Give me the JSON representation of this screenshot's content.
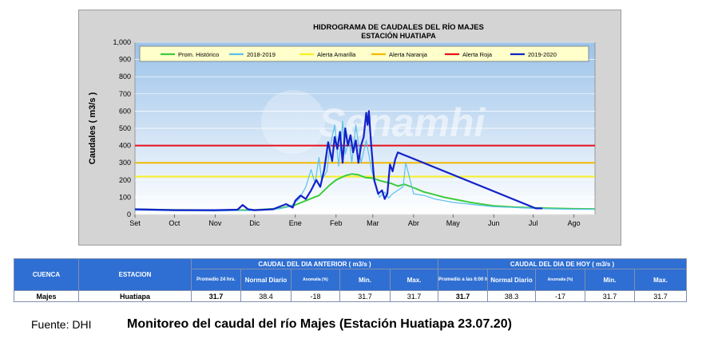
{
  "chart_data": {
    "type": "line",
    "title": "HIDROGRAMA DE CAUDALES DEL RÍO MAJES",
    "subtitle": "ESTACIÓN HUATIAPA",
    "ylabel": "Caudales ( m3/s )",
    "xlabel": "",
    "ylim": [
      0,
      1000
    ],
    "yticks": [
      0,
      100,
      200,
      300,
      400,
      500,
      600,
      700,
      800,
      900,
      1000
    ],
    "ytick_labels": [
      "0",
      "100",
      "200",
      "300",
      "400",
      "500",
      "600",
      "700",
      "800",
      "900",
      "1,000"
    ],
    "xlim": [
      0,
      350
    ],
    "xticks": [
      0,
      30,
      61,
      91,
      122,
      153,
      181,
      212,
      242,
      273,
      303,
      334
    ],
    "xtick_labels": [
      "Set",
      "Oct",
      "Nov",
      "Dic",
      "Ene",
      "Feb",
      "Mar",
      "Abr",
      "May",
      "Jun",
      "Jul",
      "Ago"
    ],
    "grid": true,
    "legend_position": "top",
    "watermark": "Senamhi",
    "series": [
      {
        "name": "Prom. Histórico",
        "color": "#3ecb3e",
        "x": [
          0,
          30,
          61,
          91,
          110,
          122,
          130,
          140,
          148,
          153,
          160,
          165,
          170,
          175,
          181,
          187,
          195,
          200,
          205,
          212,
          220,
          228,
          235,
          242,
          255,
          273,
          290,
          303,
          320,
          334,
          350
        ],
        "y": [
          30,
          27,
          25,
          26,
          35,
          55,
          80,
          110,
          170,
          200,
          225,
          235,
          230,
          215,
          210,
          195,
          180,
          165,
          175,
          155,
          130,
          115,
          100,
          90,
          70,
          50,
          42,
          38,
          35,
          33,
          32
        ]
      },
      {
        "name": "2018-2019",
        "color": "#5bc0eb",
        "x": [
          0,
          30,
          61,
          80,
          91,
          105,
          118,
          125,
          130,
          134,
          137,
          140,
          142,
          146,
          148,
          152,
          155,
          158,
          160,
          163,
          165,
          168,
          172,
          176,
          180,
          183,
          186,
          190,
          193,
          196,
          200,
          204,
          206,
          209,
          212,
          220,
          228,
          235,
          242,
          260,
          273,
          290,
          303,
          320,
          334,
          350
        ],
        "y": [
          25,
          22,
          20,
          22,
          22,
          28,
          45,
          90,
          160,
          260,
          180,
          330,
          200,
          250,
          380,
          520,
          280,
          540,
          350,
          440,
          300,
          520,
          300,
          430,
          260,
          180,
          100,
          130,
          95,
          120,
          140,
          160,
          300,
          210,
          120,
          110,
          90,
          80,
          70,
          55,
          45,
          40,
          35,
          32,
          30,
          30
        ]
      },
      {
        "name": "2019-2020",
        "color": "#1322c8",
        "x": [
          0,
          30,
          61,
          78,
          82,
          86,
          91,
          105,
          115,
          120,
          122,
          126,
          130,
          134,
          138,
          141,
          144,
          147,
          150,
          152,
          154,
          156,
          158,
          160,
          162,
          164,
          166,
          168,
          170,
          172,
          174,
          176,
          177,
          178,
          179,
          180,
          182,
          185,
          188,
          190,
          192,
          194,
          196,
          198,
          200,
          305,
          310
        ],
        "y": [
          30,
          25,
          25,
          28,
          55,
          30,
          25,
          30,
          60,
          40,
          80,
          110,
          90,
          140,
          200,
          160,
          260,
          420,
          310,
          450,
          380,
          480,
          300,
          500,
          400,
          460,
          360,
          430,
          300,
          400,
          450,
          590,
          520,
          600,
          480,
          380,
          200,
          120,
          140,
          90,
          120,
          290,
          250,
          320,
          360,
          35,
          35
        ]
      },
      {
        "name": "Alerta Amarilla",
        "color": "#f7f020",
        "x": [
          0,
          350
        ],
        "y": [
          220,
          220
        ]
      },
      {
        "name": "Alerta Naranja",
        "color": "#f3b800",
        "x": [
          0,
          350
        ],
        "y": [
          300,
          300
        ]
      },
      {
        "name": "Alerta Roja",
        "color": "#e8101a",
        "x": [
          0,
          350
        ],
        "y": [
          400,
          400
        ]
      }
    ],
    "table": {
      "col_headers": [
        "CUENCA",
        "ESTACION"
      ],
      "group_prev": "CAUDAL DEL DIA ANTERIOR ( m3/s )",
      "group_today": "CAUDAL DEL DIA DE HOY ( m3/s )",
      "sub_prev": [
        "Promedio 24 hrs.",
        "Normal Diario",
        "Anomalía (%)",
        "Min.",
        "Max."
      ],
      "sub_today": [
        "Promedio a las 6:00 hrs.",
        "Normal Diario",
        "Anomalía (%)",
        "Min.",
        "Max."
      ],
      "row": [
        "Majes",
        "Huatiapa",
        "31.7",
        "38.4",
        "-18",
        "31.7",
        "31.7",
        "31.7",
        "38.3",
        "-17",
        "31.7",
        "31.7"
      ]
    }
  },
  "footer": {
    "source": "Fuente: DHI",
    "caption": "Monitoreo del caudal del río Majes (Estación Huatiapa 23.07.20)"
  }
}
